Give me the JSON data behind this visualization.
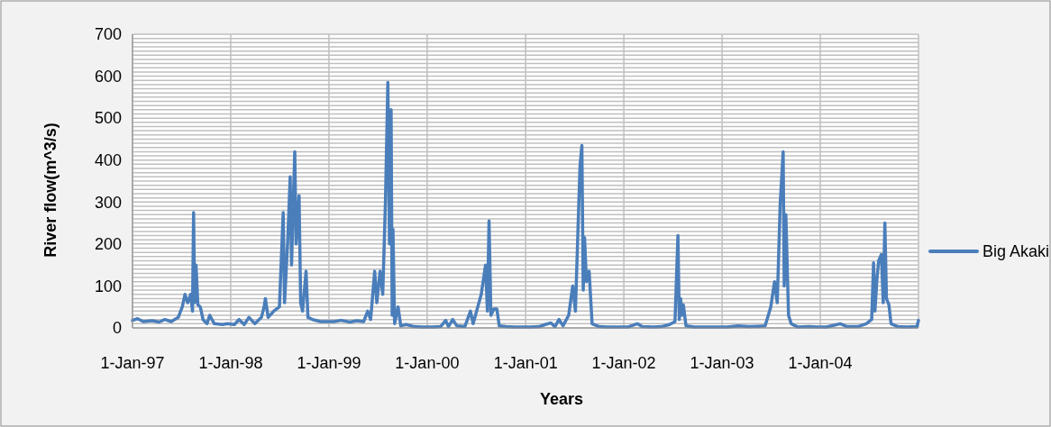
{
  "chart_data": {
    "type": "line",
    "xlabel": "Years",
    "ylabel": "River  flow(m^3/s)",
    "xlim": [
      "1997-01-01",
      "2004-12-31"
    ],
    "xticks": [
      {
        "value": "1997-01-01",
        "label": "1-Jan-97"
      },
      {
        "value": "1998-01-01",
        "label": "1-Jan-98"
      },
      {
        "value": "1999-01-01",
        "label": "1-Jan-99"
      },
      {
        "value": "2000-01-01",
        "label": "1-Jan-00"
      },
      {
        "value": "2001-01-01",
        "label": "1-Jan-01"
      },
      {
        "value": "2002-01-01",
        "label": "1-Jan-02"
      },
      {
        "value": "2003-01-01",
        "label": "1-Jan-03"
      },
      {
        "value": "2004-01-01",
        "label": "1-Jan-04"
      }
    ],
    "ylim": [
      0,
      700
    ],
    "yticks": [
      0,
      {
        "value": 10,
        "label": null
      },
      {
        "value": 20,
        "label": null
      },
      {
        "value": 30,
        "label": null
      },
      {
        "value": 40,
        "label": null
      },
      {
        "value": 50,
        "label": null
      },
      {
        "value": 60,
        "label": null
      },
      {
        "value": 70,
        "label": null
      },
      {
        "value": 80,
        "label": null
      },
      {
        "value": 90,
        "label": null
      },
      100,
      {
        "value": 110,
        "label": null
      },
      {
        "value": 120,
        "label": null
      },
      {
        "value": 130,
        "label": null
      },
      {
        "value": 140,
        "label": null
      },
      {
        "value": 150,
        "label": null
      },
      {
        "value": 160,
        "label": null
      },
      {
        "value": 170,
        "label": null
      },
      {
        "value": 180,
        "label": null
      },
      {
        "value": 190,
        "label": null
      },
      200,
      {
        "value": 210,
        "label": null
      },
      {
        "value": 220,
        "label": null
      },
      {
        "value": 230,
        "label": null
      },
      {
        "value": 240,
        "label": null
      },
      {
        "value": 250,
        "label": null
      },
      {
        "value": 260,
        "label": null
      },
      {
        "value": 270,
        "label": null
      },
      {
        "value": 280,
        "label": null
      },
      {
        "value": 290,
        "label": null
      },
      300,
      {
        "value": 310,
        "label": null
      },
      {
        "value": 320,
        "label": null
      },
      {
        "value": 330,
        "label": null
      },
      {
        "value": 340,
        "label": null
      },
      {
        "value": 350,
        "label": null
      },
      {
        "value": 360,
        "label": null
      },
      {
        "value": 370,
        "label": null
      },
      {
        "value": 380,
        "label": null
      },
      {
        "value": 390,
        "label": null
      },
      400,
      {
        "value": 410,
        "label": null
      },
      {
        "value": 420,
        "label": null
      },
      {
        "value": 430,
        "label": null
      },
      {
        "value": 440,
        "label": null
      },
      {
        "value": 450,
        "label": null
      },
      {
        "value": 460,
        "label": null
      },
      {
        "value": 470,
        "label": null
      },
      {
        "value": 480,
        "label": null
      },
      {
        "value": 490,
        "label": null
      },
      500,
      {
        "value": 510,
        "label": null
      },
      {
        "value": 520,
        "label": null
      },
      {
        "value": 530,
        "label": null
      },
      {
        "value": 540,
        "label": null
      },
      {
        "value": 550,
        "label": null
      },
      {
        "value": 560,
        "label": null
      },
      {
        "value": 570,
        "label": null
      },
      {
        "value": 580,
        "label": null
      },
      {
        "value": 590,
        "label": null
      },
      600,
      {
        "value": 610,
        "label": null
      },
      {
        "value": 620,
        "label": null
      },
      {
        "value": 630,
        "label": null
      },
      {
        "value": 640,
        "label": null
      },
      {
        "value": 650,
        "label": null
      },
      {
        "value": 660,
        "label": null
      },
      {
        "value": 670,
        "label": null
      },
      {
        "value": 680,
        "label": null
      },
      {
        "value": 690,
        "label": null
      },
      700
    ],
    "grid": true,
    "legend": "right",
    "marker": "none",
    "x": [
      "1997-01-01",
      "1997-01-20",
      "1997-02-10",
      "1997-03-15",
      "1997-04-10",
      "1997-05-01",
      "1997-05-25",
      "1997-06-20",
      "1997-07-05",
      "1997-07-15",
      "1997-07-25",
      "1997-08-05",
      "1997-08-12",
      "1997-08-16",
      "1997-08-20",
      "1997-08-25",
      "1997-09-01",
      "1997-09-10",
      "1997-09-20",
      "1997-10-05",
      "1997-10-15",
      "1997-11-01",
      "1997-12-01",
      "1997-12-20",
      "1998-01-15",
      "1998-02-01",
      "1998-02-20",
      "1998-03-10",
      "1998-04-01",
      "1998-04-25",
      "1998-05-05",
      "1998-05-10",
      "1998-05-20",
      "1998-06-10",
      "1998-07-01",
      "1998-07-15",
      "1998-07-20",
      "1998-08-01",
      "1998-08-10",
      "1998-08-15",
      "1998-08-27",
      "1998-09-01",
      "1998-09-12",
      "1998-09-18",
      "1998-09-25",
      "1998-10-08",
      "1998-10-15",
      "1998-11-01",
      "1998-12-01",
      "1998-12-20",
      "1999-01-20",
      "1999-02-15",
      "1999-03-20",
      "1999-04-15",
      "1999-05-10",
      "1999-05-25",
      "1999-06-05",
      "1999-06-20",
      "1999-06-28",
      "1999-07-10",
      "1999-07-20",
      "1999-07-30",
      "1999-08-08",
      "1999-08-14",
      "1999-08-20",
      "1999-08-24",
      "1999-08-27",
      "1999-09-02",
      "1999-09-15",
      "1999-09-25",
      "1999-10-15",
      "1999-11-15",
      "1999-12-15",
      "2000-01-20",
      "2000-02-20",
      "2000-03-10",
      "2000-03-20",
      "2000-04-05",
      "2000-04-20",
      "2000-05-20",
      "2000-06-10",
      "2000-06-20",
      "2000-07-05",
      "2000-07-20",
      "2000-08-05",
      "2000-08-12",
      "2000-08-18",
      "2000-08-25",
      "2000-09-05",
      "2000-09-16",
      "2000-09-25",
      "2000-10-20",
      "2000-11-20",
      "2000-12-20",
      "2001-01-20",
      "2001-02-20",
      "2001-03-15",
      "2001-04-05",
      "2001-04-20",
      "2001-05-05",
      "2001-05-20",
      "2001-06-10",
      "2001-06-25",
      "2001-07-05",
      "2001-07-22",
      "2001-07-29",
      "2001-08-03",
      "2001-08-08",
      "2001-08-15",
      "2001-08-25",
      "2001-09-05",
      "2001-10-01",
      "2001-11-01",
      "2001-12-01",
      "2002-01-15",
      "2002-02-20",
      "2002-03-10",
      "2002-04-20",
      "2002-05-20",
      "2002-06-20",
      "2002-07-10",
      "2002-07-21",
      "2002-07-26",
      "2002-07-31",
      "2002-08-05",
      "2002-08-10",
      "2002-08-20",
      "2002-09-20",
      "2002-11-01",
      "2002-12-15",
      "2003-01-20",
      "2003-03-01",
      "2003-04-10",
      "2003-05-15",
      "2003-06-10",
      "2003-07-01",
      "2003-07-15",
      "2003-07-25",
      "2003-08-05",
      "2003-08-16",
      "2003-08-20",
      "2003-08-26",
      "2003-09-05",
      "2003-09-15",
      "2003-10-10",
      "2003-11-20",
      "2003-12-20",
      "2004-01-25",
      "2004-03-15",
      "2004-04-10",
      "2004-05-20",
      "2004-06-20",
      "2004-07-10",
      "2004-07-17",
      "2004-07-22",
      "2004-07-30",
      "2004-08-05",
      "2004-08-15",
      "2004-08-22",
      "2004-08-28",
      "2004-09-03",
      "2004-09-12",
      "2004-09-20",
      "2004-10-15",
      "2004-11-20",
      "2004-12-25",
      "2004-12-31"
    ],
    "series": [
      {
        "name": "Big Akaki",
        "color": "#4a7ebb",
        "values": [
          18,
          22,
          15,
          17,
          14,
          20,
          15,
          25,
          50,
          80,
          60,
          80,
          40,
          275,
          60,
          150,
          55,
          50,
          20,
          10,
          30,
          10,
          8,
          10,
          8,
          20,
          8,
          25,
          10,
          25,
          50,
          70,
          25,
          40,
          50,
          275,
          60,
          210,
          360,
          150,
          420,
          200,
          315,
          60,
          40,
          135,
          25,
          20,
          15,
          15,
          15,
          18,
          14,
          17,
          15,
          40,
          20,
          135,
          60,
          135,
          80,
          300,
          585,
          200,
          520,
          30,
          235,
          10,
          50,
          5,
          8,
          3,
          2,
          2,
          3,
          18,
          3,
          20,
          5,
          3,
          40,
          10,
          45,
          80,
          150,
          40,
          255,
          30,
          45,
          45,
          5,
          3,
          2,
          2,
          2,
          3,
          8,
          12,
          3,
          20,
          5,
          30,
          100,
          40,
          385,
          435,
          90,
          215,
          110,
          135,
          10,
          3,
          2,
          2,
          2,
          10,
          3,
          2,
          3,
          8,
          15,
          220,
          20,
          70,
          30,
          55,
          5,
          2,
          2,
          2,
          2,
          5,
          3,
          4,
          5,
          50,
          110,
          60,
          295,
          420,
          100,
          270,
          30,
          10,
          2,
          3,
          2,
          2,
          10,
          3,
          3,
          10,
          20,
          155,
          40,
          120,
          160,
          175,
          60,
          250,
          70,
          55,
          10,
          3,
          2,
          3,
          18
        ]
      }
    ]
  }
}
